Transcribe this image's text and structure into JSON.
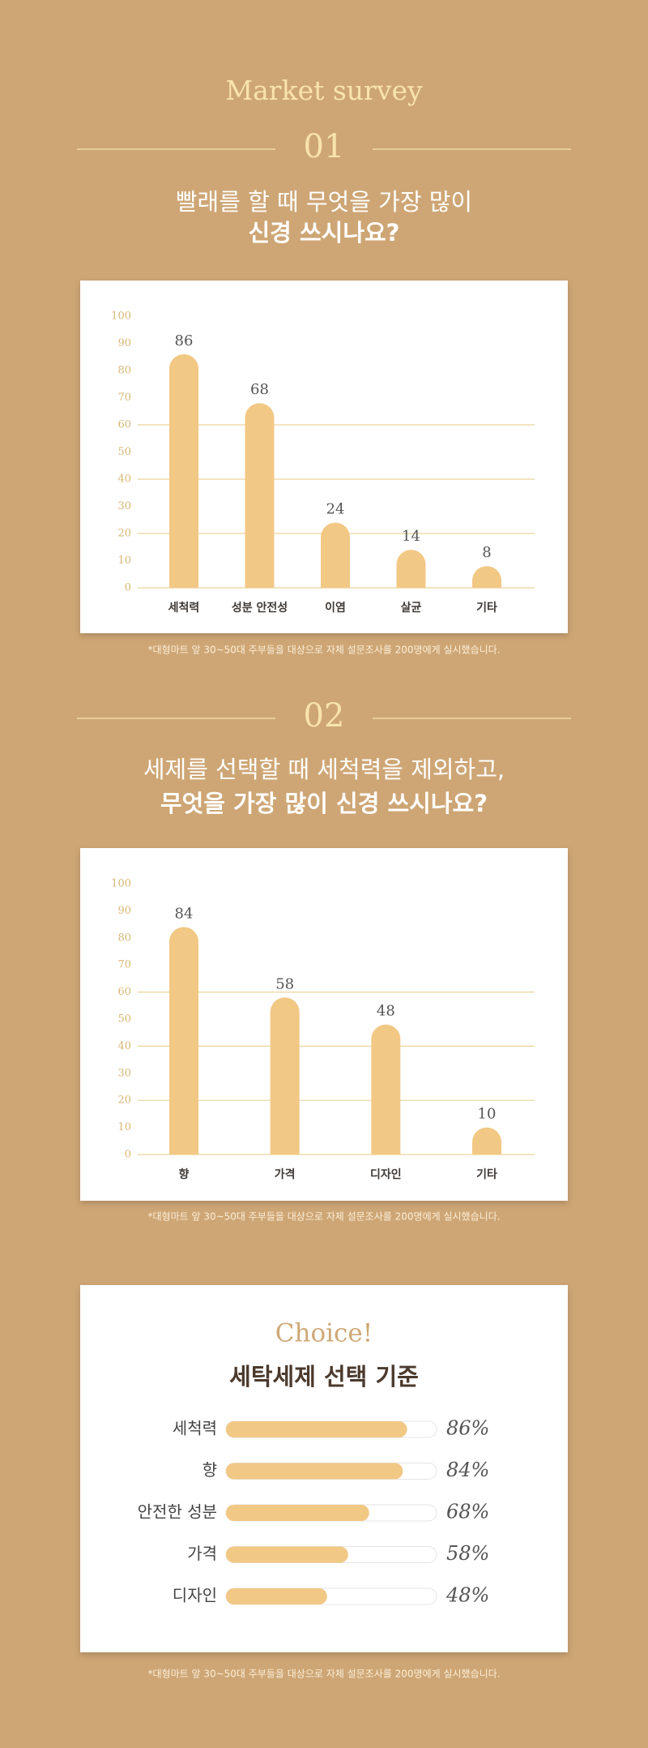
{
  "header": {
    "title": "Market survey"
  },
  "sections": [
    {
      "number": "01",
      "question": [
        "빨래를 할 때 무엇을 가장 많이",
        "신경 쓰시나요?"
      ]
    },
    {
      "number": "02",
      "question": [
        "세제를 선택할 때 세척력을 제외하고,",
        "무엇을 가장 많이 신경 쓰시나요?"
      ]
    }
  ],
  "chart_data": [
    {
      "type": "bar",
      "categories": [
        "세척력",
        "성분 안전성",
        "이염",
        "살균",
        "기타"
      ],
      "values": [
        86,
        68,
        24,
        14,
        8
      ],
      "color": "#f2c885",
      "ylim": [
        0,
        100
      ],
      "yticks": [
        0,
        10,
        20,
        30,
        40,
        50,
        60,
        70,
        80,
        90,
        100
      ],
      "grid_lines": [
        0,
        20,
        40,
        60
      ],
      "note": "*대형마트 앞 30~50대 주부들을 대상으로 자체 설문조사를 200명에게 실시했습니다."
    },
    {
      "type": "bar",
      "categories": [
        "향",
        "가격",
        "디자인",
        "기타"
      ],
      "values": [
        84,
        58,
        48,
        10
      ],
      "color": "#f2c885",
      "ylim": [
        0,
        100
      ],
      "yticks": [
        0,
        10,
        20,
        30,
        40,
        50,
        60,
        70,
        80,
        90,
        100
      ],
      "grid_lines": [
        0,
        20,
        40,
        60
      ],
      "note": "*대형마트 앞 30~50대 주부들을 대상으로 자체 설문조사를 200명에게 실시했습니다."
    },
    {
      "type": "hbar",
      "title": "Choice!",
      "subtitle": "세탁세제 선택 기준",
      "categories": [
        "세척력",
        "향",
        "안전한 성분",
        "가격",
        "디자인"
      ],
      "values": [
        86,
        84,
        68,
        58,
        48
      ],
      "value_labels": [
        "86%",
        "84%",
        "68%",
        "58%",
        "48%"
      ],
      "xlim": [
        0,
        100
      ],
      "color": "#f2c885",
      "note": "*대형마트 앞 30~50대 주부들을 대상으로 자체 설문조사를 200명에게 실시했습니다."
    }
  ]
}
